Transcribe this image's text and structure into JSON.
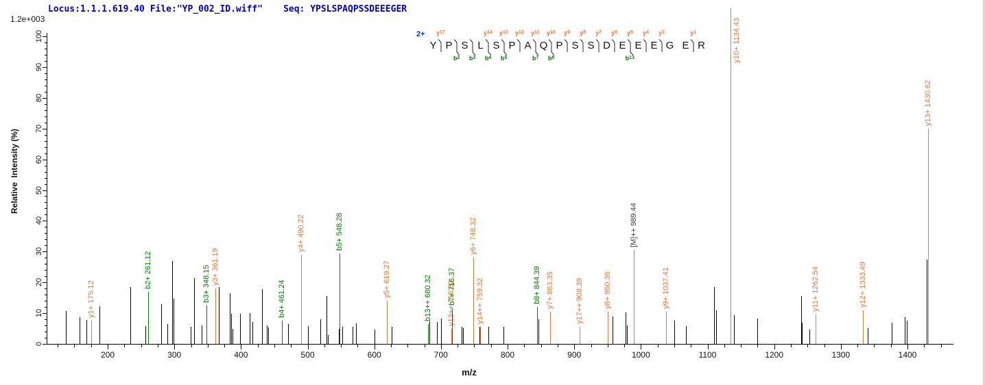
{
  "header": {
    "locus_file": "Locus:1.1.1.619.40 File:\"YP_002_ID.wiff\"",
    "seq": "Seq: YPSLSPAQPSSDEEEGER"
  },
  "axes": {
    "y_title": "Relative  Intensity (%)",
    "y_scale_note": "1.2e+003",
    "y_tick_values": [
      0,
      10,
      20,
      30,
      40,
      50,
      60,
      70,
      80,
      90,
      100
    ],
    "y_minor_step": 2,
    "x_title": "m/z",
    "x_tick_values": [
      200,
      300,
      400,
      500,
      600,
      700,
      800,
      900,
      1000,
      1100,
      1200,
      1300,
      1400
    ],
    "x_minor_step": 25,
    "x_min": 108,
    "x_max": 1469
  },
  "colors": {
    "y_ion": "#e2763c",
    "b_ion": "#007a00",
    "precursor_line": "#8c8c8c",
    "precursor_text": "#3c3c3c",
    "peak_black": "#000000",
    "header_blue": "#0000bb",
    "charge_blue": "#0033cc",
    "mark": "#222222"
  },
  "sequence": {
    "charge": "2+",
    "residues": "YPSLSPAQPSSDEEEGER",
    "junctions": [
      {
        "after": 1,
        "y": "y17"
      },
      {
        "after": 2,
        "b": "b2"
      },
      {
        "after": 3,
        "b": "b3"
      },
      {
        "after": 4,
        "y": "y14",
        "b": "b4"
      },
      {
        "after": 5,
        "y": "y13",
        "b": "b5"
      },
      {
        "after": 6,
        "y": "y12"
      },
      {
        "after": 7,
        "y": "y11",
        "b": "b7"
      },
      {
        "after": 8,
        "y": "y10",
        "b": "b8"
      },
      {
        "after": 9,
        "y": "y9"
      },
      {
        "after": 10,
        "y": "y8"
      },
      {
        "after": 11,
        "y": "y7"
      },
      {
        "after": 12,
        "y": "y6"
      },
      {
        "after": 13,
        "y": "y5",
        "b": "b13"
      },
      {
        "after": 14,
        "y": "y4"
      },
      {
        "after": 15,
        "y": "y3"
      },
      {
        "after": 17,
        "y": "y1"
      }
    ]
  },
  "chart_data": {
    "type": "bar",
    "subtype": "ms2-mass-spectrum",
    "xlabel": "m/z",
    "ylabel": "Relative  Intensity (%)",
    "x_range": [
      108,
      1469
    ],
    "y_range": [
      0,
      100
    ],
    "y_full_scale_counts": "1.2e+003",
    "labeled_peaks": [
      {
        "ion": "y1+",
        "mz": 175.12,
        "intensity": 7.5,
        "series": "y"
      },
      {
        "ion": "b2+",
        "mz": 261.12,
        "intensity": 17,
        "series": "b"
      },
      {
        "ion": "b3+",
        "mz": 348.15,
        "intensity": 12.5,
        "series": "b"
      },
      {
        "ion": "y3+",
        "mz": 361.19,
        "intensity": 18,
        "series": "y"
      },
      {
        "ion": "b4+",
        "mz": 461.24,
        "intensity": 7.5,
        "series": "b"
      },
      {
        "ion": "y4+",
        "mz": 490.22,
        "intensity": 29,
        "series": "y"
      },
      {
        "ion": "b5+",
        "mz": 548.28,
        "intensity": 29.5,
        "series": "b"
      },
      {
        "ion": "y5+",
        "mz": 619.27,
        "intensity": 14,
        "series": "y"
      },
      {
        "ion": "b13++",
        "mz": 680.32,
        "intensity": 6.5,
        "series": "b"
      },
      {
        "ion": "y13++",
        "mz": 715.82,
        "intensity": 5,
        "series": "y"
      },
      {
        "ion": "b7+",
        "mz": 716.37,
        "intensity": 11.5,
        "series": "b"
      },
      {
        "ion": "y6+",
        "mz": 748.32,
        "intensity": 28,
        "series": "y"
      },
      {
        "ion": "y14++",
        "mz": 759.32,
        "intensity": 5.5,
        "series": "y"
      },
      {
        "ion": "b8+",
        "mz": 844.39,
        "intensity": 12,
        "series": "b"
      },
      {
        "ion": "y7+",
        "mz": 863.35,
        "intensity": 10.5,
        "series": "y"
      },
      {
        "ion": "y17++",
        "mz": 908.39,
        "intensity": 5.5,
        "series": "y"
      },
      {
        "ion": "y8+",
        "mz": 950.36,
        "intensity": 10.5,
        "series": "y"
      },
      {
        "ion": "[M]++",
        "mz": 989.44,
        "intensity": 30.5,
        "series": "precursor"
      },
      {
        "ion": "y9+",
        "mz": 1037.41,
        "intensity": 10.5,
        "series": "y"
      },
      {
        "ion": "y10+",
        "mz": 1134.43,
        "intensity": 100,
        "series": "y",
        "full_height": true,
        "label_dx": 16,
        "label_anchor_y": 92
      },
      {
        "ion": "y11+",
        "mz": 1262.54,
        "intensity": 9.5,
        "series": "y"
      },
      {
        "ion": "y12+",
        "mz": 1333.49,
        "intensity": 11,
        "series": "y"
      },
      {
        "ion": "y13+",
        "mz": 1430.62,
        "intensity": 70,
        "series": "y"
      }
    ],
    "unlabeled_peaks": [
      [
        137,
        10.7
      ],
      [
        158,
        8.8
      ],
      [
        168,
        7.9
      ],
      [
        188,
        12.2
      ],
      [
        234,
        18.4
      ],
      [
        256.5,
        5.8
      ],
      [
        280,
        13
      ],
      [
        289,
        6.5
      ],
      [
        296.7,
        27
      ],
      [
        298.7,
        14.6
      ],
      [
        324.5,
        5.5
      ],
      [
        330,
        21.5
      ],
      [
        341,
        6
      ],
      [
        367,
        18.5
      ],
      [
        383,
        16.4
      ],
      [
        384.8,
        9.7
      ],
      [
        386.8,
        4.9
      ],
      [
        399,
        9.7
      ],
      [
        413,
        10.1
      ],
      [
        417,
        7.1
      ],
      [
        432,
        17.9
      ],
      [
        439,
        6
      ],
      [
        441,
        5.4
      ],
      [
        471,
        6.4
      ],
      [
        500,
        5.8
      ],
      [
        519,
        8.1
      ],
      [
        528,
        15.5
      ],
      [
        530.5,
        3
      ],
      [
        546.5,
        4.8
      ],
      [
        552,
        5.5
      ],
      [
        567,
        5.5
      ],
      [
        573,
        6.7
      ],
      [
        600,
        4.7
      ],
      [
        626,
        5.5
      ],
      [
        682.5,
        7.3
      ],
      [
        694,
        7.2
      ],
      [
        700,
        8.3
      ],
      [
        731,
        5.5
      ],
      [
        733,
        5.2
      ],
      [
        757.5,
        5.5
      ],
      [
        771,
        5.5
      ],
      [
        794,
        5.5
      ],
      [
        846,
        8
      ],
      [
        957.5,
        9
      ],
      [
        977,
        10.2
      ],
      [
        978.8,
        6
      ],
      [
        1050.5,
        7.5
      ],
      [
        1068,
        5.8
      ],
      [
        1110,
        18.4
      ],
      [
        1112.5,
        11
      ],
      [
        1140,
        9.4
      ],
      [
        1175,
        8.2
      ],
      [
        1240,
        15.5
      ],
      [
        1242,
        7
      ],
      [
        1253,
        4.6
      ],
      [
        1340,
        5.2
      ],
      [
        1376,
        7
      ],
      [
        1396,
        8.6
      ],
      [
        1398.7,
        7.6
      ],
      [
        1428.5,
        27.5
      ]
    ]
  }
}
